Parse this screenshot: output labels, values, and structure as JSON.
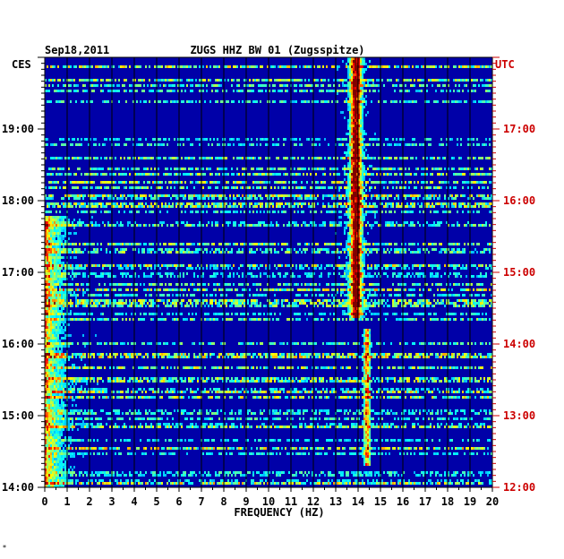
{
  "chart_data": {
    "type": "heatmap",
    "title_left": "Sep18,2011",
    "title_center": "ZUGS HHZ BW 01 (Zugsspitze)",
    "left_axis_label": "CES",
    "right_axis_label": "UTC",
    "xlabel": "FREQUENCY (HZ)",
    "xlim": [
      0,
      20
    ],
    "x_ticks": [
      "0",
      "1",
      "2",
      "3",
      "4",
      "5",
      "6",
      "7",
      "8",
      "9",
      "10",
      "11",
      "12",
      "13",
      "14",
      "15",
      "16",
      "17",
      "18",
      "19",
      "20"
    ],
    "y_range_hours_local": [
      14.0,
      20.0
    ],
    "y_ticks_left": [
      "14:00",
      "15:00",
      "16:00",
      "17:00",
      "18:00",
      "19:00"
    ],
    "y_ticks_right": [
      "12:00",
      "13:00",
      "14:00",
      "15:00",
      "16:00",
      "17:00"
    ],
    "features": [
      {
        "freq_hz": 13.9,
        "from_hour": 16.35,
        "to_hour": 20.0,
        "kind": "strong narrow band"
      },
      {
        "freq_hz": 14.4,
        "from_hour": 14.3,
        "to_hour": 16.2,
        "kind": "weak narrow band"
      },
      {
        "freq_hz": 0.5,
        "from_hour": 14.0,
        "to_hour": 17.8,
        "kind": "low-frequency energy"
      }
    ],
    "grid": true
  },
  "colors": {
    "background": "#0000a8",
    "right_axis": "#cc0000",
    "left_axis": "#000000"
  },
  "footer_mark": "*"
}
